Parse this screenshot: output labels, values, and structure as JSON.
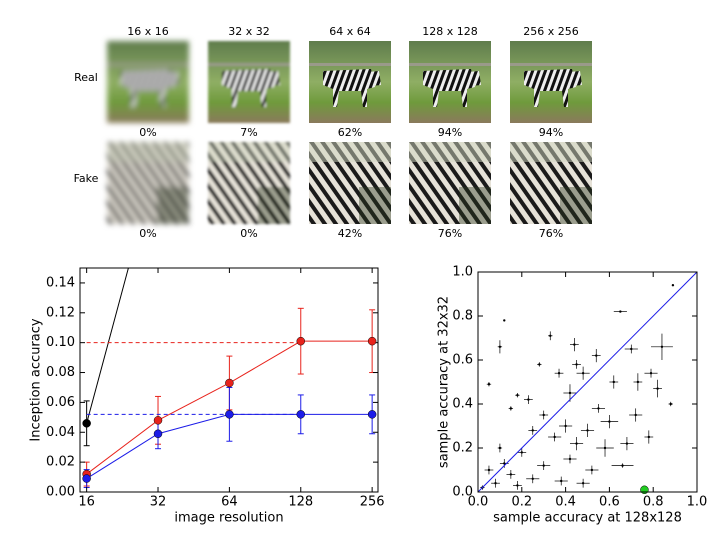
{
  "image_grid": {
    "columns": [
      "16 x 16",
      "32 x 32",
      "64 x 64",
      "128 x 128",
      "256 x 256"
    ],
    "rows": [
      {
        "label": "Real",
        "accuracy": [
          "0%",
          "7%",
          "62%",
          "94%",
          "94%"
        ]
      },
      {
        "label": "Fake",
        "accuracy": [
          "0%",
          "0%",
          "42%",
          "76%",
          "76%"
        ]
      }
    ]
  },
  "chart_data": [
    {
      "type": "line",
      "xlabel": "image resolution",
      "ylabel": "Inception accuracy",
      "xscale": "log2",
      "x": [
        16,
        32,
        64,
        128,
        256
      ],
      "xlim": [
        15,
        271
      ],
      "xticks": [
        16,
        32,
        64,
        128,
        256
      ],
      "ylim": [
        0,
        0.15
      ],
      "yticks": [
        {
          "value": 0,
          "label": "0.00"
        },
        {
          "value": 0.02,
          "label": "0.02"
        },
        {
          "value": 0.04,
          "label": "0.04"
        },
        {
          "value": 0.06,
          "label": "0.06"
        },
        {
          "value": 0.08,
          "label": "0.08"
        },
        {
          "value": 0.1,
          "label": "0.10"
        },
        {
          "value": 0.12,
          "label": "0.12"
        },
        {
          "value": 0.14,
          "label": "0.14"
        }
      ],
      "series": [
        {
          "color": "#e8231c",
          "values": [
            0.012,
            0.048,
            0.073,
            0.101,
            0.101
          ],
          "errors": [
            0.008,
            0.016,
            0.018,
            0.022,
            0.021
          ],
          "marker": true
        },
        {
          "color": "#1c1ce8",
          "values": [
            0.009,
            0.039,
            0.052,
            0.052,
            0.052
          ],
          "errors": [
            0.006,
            0.01,
            0.018,
            0.013,
            0.013
          ],
          "marker": true
        },
        {
          "color": "#000000",
          "x": [
            16
          ],
          "values": [
            0.046
          ],
          "errors": [
            0.015
          ],
          "marker": true
        },
        {
          "color": "#000000",
          "x": [
            16,
            24
          ],
          "values": [
            0.046,
            0.15
          ]
        },
        {
          "color": "#e8231c",
          "x": [
            16,
            128
          ],
          "values": [
            0.1,
            0.1
          ],
          "dashed": true
        },
        {
          "color": "#1c1ce8",
          "x": [
            16,
            128
          ],
          "values": [
            0.052,
            0.052
          ],
          "dashed": true
        }
      ]
    },
    {
      "type": "scatter",
      "xlabel": "sample accuracy at 128x128",
      "ylabel": "sample accuracy at 32x32",
      "xlim": [
        0,
        1
      ],
      "ylim": [
        0,
        1
      ],
      "xticks": [
        {
          "value": 0,
          "label": "0.0"
        },
        {
          "value": 0.2,
          "label": "0.2"
        },
        {
          "value": 0.4,
          "label": "0.4"
        },
        {
          "value": 0.6,
          "label": "0.6"
        },
        {
          "value": 0.8,
          "label": "0.8"
        },
        {
          "value": 1,
          "label": "1.0"
        }
      ],
      "yticks": [
        {
          "value": 0,
          "label": "0.0"
        },
        {
          "value": 0.2,
          "label": "0.2"
        },
        {
          "value": 0.4,
          "label": "0.4"
        },
        {
          "value": 0.6,
          "label": "0.6"
        },
        {
          "value": 0.8,
          "label": "0.8"
        },
        {
          "value": 1,
          "label": "1.0"
        }
      ],
      "series": [
        {
          "color": "#000000",
          "x": [
            0.89,
            0.12,
            0.1,
            0.33,
            0.44,
            0.65,
            0.7,
            0.84,
            0.54,
            0.45,
            0.28,
            0.37,
            0.48,
            0.42,
            0.05,
            0.18,
            0.23,
            0.62,
            0.73,
            0.79,
            0.82,
            0.88,
            0.55,
            0.6,
            0.72,
            0.5,
            0.4,
            0.3,
            0.15,
            0.78,
            0.68,
            0.58,
            0.45,
            0.35,
            0.25,
            0.2,
            0.1,
            0.3,
            0.42,
            0.52,
            0.66,
            0.05,
            0.15,
            0.25,
            0.38,
            0.08,
            0.18,
            0.02,
            0.12,
            0.48
          ],
          "values": [
            0.94,
            0.78,
            0.66,
            0.71,
            0.67,
            0.82,
            0.65,
            0.66,
            0.62,
            0.58,
            0.58,
            0.54,
            0.54,
            0.45,
            0.49,
            0.44,
            0.42,
            0.5,
            0.5,
            0.54,
            0.47,
            0.4,
            0.38,
            0.32,
            0.35,
            0.28,
            0.3,
            0.35,
            0.38,
            0.25,
            0.22,
            0.2,
            0.22,
            0.25,
            0.28,
            0.18,
            0.2,
            0.12,
            0.15,
            0.1,
            0.12,
            0.1,
            0.08,
            0.06,
            0.05,
            0.04,
            0.03,
            0.02,
            0.13,
            0.04
          ],
          "xerr": [
            0,
            0,
            0.01,
            0.01,
            0.02,
            0.03,
            0.03,
            0.05,
            0.02,
            0.02,
            0.01,
            0.02,
            0.03,
            0.03,
            0.01,
            0.01,
            0.02,
            0.02,
            0.02,
            0.03,
            0.02,
            0.01,
            0.03,
            0.04,
            0.03,
            0.03,
            0.03,
            0.02,
            0.01,
            0.02,
            0.03,
            0.04,
            0.03,
            0.03,
            0.02,
            0.02,
            0.01,
            0.03,
            0.03,
            0.03,
            0.05,
            0.02,
            0.02,
            0.03,
            0.03,
            0.02,
            0.02,
            0.01,
            0.02,
            0.03
          ],
          "yerr": [
            0,
            0,
            0.03,
            0.02,
            0.03,
            0,
            0.02,
            0.06,
            0.03,
            0.02,
            0.01,
            0.02,
            0.03,
            0.04,
            0.01,
            0.01,
            0.02,
            0.03,
            0.04,
            0.02,
            0.04,
            0.01,
            0.02,
            0.03,
            0.03,
            0.03,
            0.03,
            0.02,
            0.01,
            0.03,
            0.03,
            0.04,
            0.03,
            0.02,
            0.02,
            0.02,
            0.02,
            0.02,
            0.02,
            0.02,
            0.01,
            0.02,
            0.02,
            0.02,
            0.02,
            0.02,
            0.02,
            0.01,
            0.02,
            0.02
          ]
        },
        {
          "color": "#1c1ce8",
          "x": [
            0,
            1
          ],
          "values": [
            0,
            1
          ],
          "line": true
        },
        {
          "color": "#22cc22",
          "x": [
            0.76
          ],
          "values": [
            0.01
          ],
          "marker": true
        }
      ]
    }
  ]
}
